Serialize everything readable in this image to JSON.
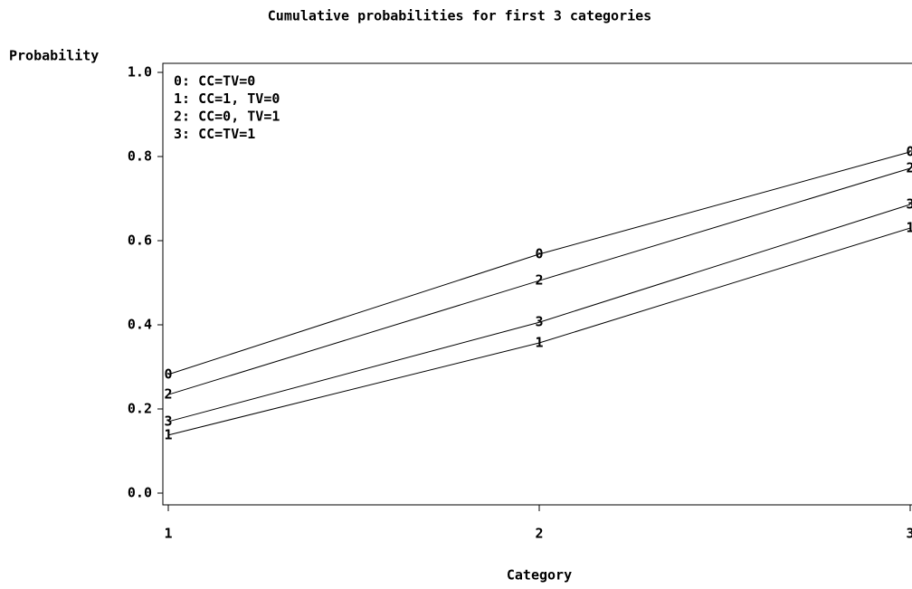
{
  "chart_data": {
    "type": "line",
    "title": "Cumulative probabilities for first 3 categories",
    "y_label": "Probability",
    "x_label": "Category",
    "x": [
      1,
      2,
      3
    ],
    "xlim": [
      1,
      3
    ],
    "xticks": [
      1,
      2,
      3
    ],
    "ylim": [
      0,
      1
    ],
    "yticks": [
      {
        "value": 0,
        "label": "0.0"
      },
      {
        "value": 0.2,
        "label": "0.2"
      },
      {
        "value": 0.4,
        "label": "0.4"
      },
      {
        "value": 0.6,
        "label": "0.6"
      },
      {
        "value": 0.8,
        "label": "0.8"
      },
      {
        "value": 1,
        "label": "1.0"
      }
    ],
    "legend_position": "upper left",
    "series": [
      {
        "name": "0: CC=TV=0",
        "symbol": "0",
        "color": "#000000",
        "values": [
          0.282,
          0.568,
          0.811
        ]
      },
      {
        "name": "1: CC=1, TV=0",
        "symbol": "1",
        "color": "#000000",
        "values": [
          0.138,
          0.357,
          0.63
        ]
      },
      {
        "name": "2: CC=0, TV=1",
        "symbol": "2",
        "color": "#000000",
        "values": [
          0.234,
          0.505,
          0.772
        ]
      },
      {
        "name": "3: CC=TV=1",
        "symbol": "3",
        "color": "#000000",
        "values": [
          0.17,
          0.406,
          0.686
        ]
      }
    ]
  }
}
